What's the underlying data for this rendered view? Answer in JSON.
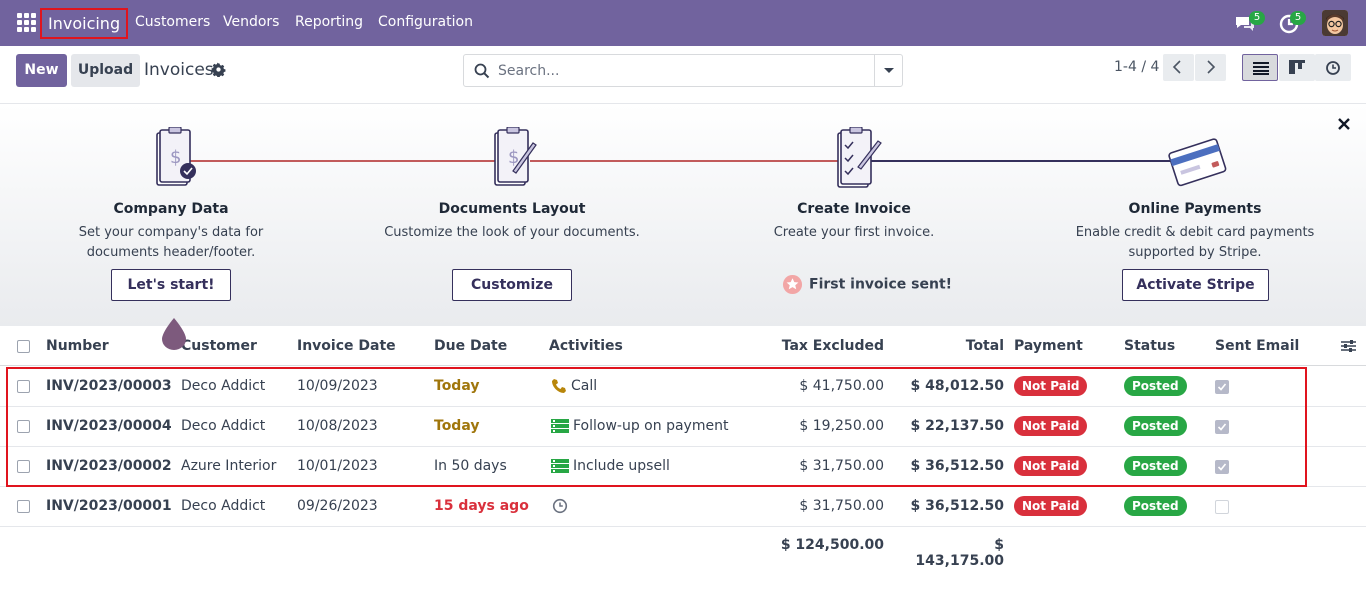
{
  "navbar": {
    "brand": "Invoicing",
    "menu": [
      "Customers",
      "Vendors",
      "Reporting",
      "Configuration"
    ],
    "messages_count": "5",
    "activities_count": "5"
  },
  "control_panel": {
    "new_label": "New",
    "upload_label": "Upload",
    "title": "Invoices",
    "search_placeholder": "Search...",
    "pager": "1-4 / 4"
  },
  "onboarding": {
    "steps": [
      {
        "title": "Company Data",
        "description": "Set your company's data for documents header/footer.",
        "button": "Let's start!"
      },
      {
        "title": "Documents Layout",
        "description": "Customize the look of your documents.",
        "button": "Customize"
      },
      {
        "title": "Create Invoice",
        "description": "Create your first invoice.",
        "done": "First invoice sent!"
      },
      {
        "title": "Online Payments",
        "description": "Enable credit & debit card payments supported by Stripe.",
        "button": "Activate Stripe"
      }
    ]
  },
  "table": {
    "columns": {
      "number": "Number",
      "customer": "Customer",
      "invoice_date": "Invoice Date",
      "due_date": "Due Date",
      "activities": "Activities",
      "tax_excluded": "Tax Excluded",
      "total": "Total",
      "payment": "Payment",
      "status": "Status",
      "sent_email": "Sent Email"
    },
    "rows": [
      {
        "number": "INV/2023/00003",
        "customer": "Deco Addict",
        "invoice_date": "10/09/2023",
        "due_date": "Today",
        "activity": "Call",
        "activity_icon": "phone-icon",
        "tax_excluded": "$ 41,750.00",
        "total": "$ 48,012.50",
        "payment": "Not Paid",
        "status": "Posted",
        "sent": true
      },
      {
        "number": "INV/2023/00004",
        "customer": "Deco Addict",
        "invoice_date": "10/08/2023",
        "due_date": "Today",
        "activity": "Follow-up on payment",
        "activity_icon": "todo-icon",
        "tax_excluded": "$ 19,250.00",
        "total": "$ 22,137.50",
        "payment": "Not Paid",
        "status": "Posted",
        "sent": true
      },
      {
        "number": "INV/2023/00002",
        "customer": "Azure Interior",
        "invoice_date": "10/01/2023",
        "due_date": "In 50 days",
        "activity": "Include upsell",
        "activity_icon": "todo-icon",
        "tax_excluded": "$ 31,750.00",
        "total": "$ 36,512.50",
        "payment": "Not Paid",
        "status": "Posted",
        "sent": true
      },
      {
        "number": "INV/2023/00001",
        "customer": "Deco Addict",
        "invoice_date": "09/26/2023",
        "due_date": "15 days ago",
        "activity": "",
        "activity_icon": "clock-icon",
        "tax_excluded": "$ 31,750.00",
        "total": "$ 36,512.50",
        "payment": "Not Paid",
        "status": "Posted",
        "sent": false
      }
    ],
    "totals": {
      "tax_excluded": "$ 124,500.00",
      "total": "$ 143,175.00"
    }
  },
  "colors": {
    "brand": "#71639e",
    "not_paid": "#d9303c",
    "posted": "#28a745",
    "highlight": "#e0141e"
  }
}
